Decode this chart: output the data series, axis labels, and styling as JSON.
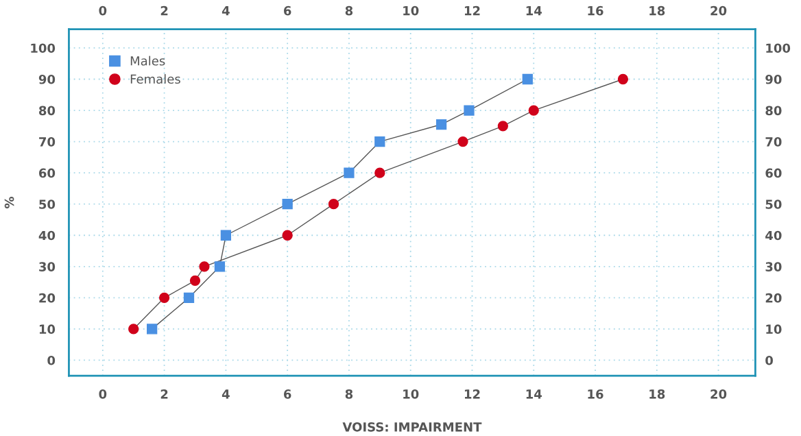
{
  "chart_data": {
    "type": "line",
    "xlabel": "VOISS: IMPAIRMENT",
    "ylabel": "%",
    "xlim": [
      -1.1,
      21.2
    ],
    "xticks": [
      0,
      2,
      4,
      6,
      8,
      10,
      12,
      14,
      16,
      18,
      20
    ],
    "x2lim": [
      -1.1,
      21.2
    ],
    "x2ticks": [
      0,
      2,
      4,
      6,
      8,
      10,
      12,
      14,
      16,
      18,
      20
    ],
    "ylim": [
      -5,
      106
    ],
    "yticks": [
      0,
      10,
      20,
      30,
      40,
      50,
      60,
      70,
      80,
      90,
      100
    ],
    "y2lim": [
      -5,
      106
    ],
    "y2ticks": [
      0,
      10,
      20,
      30,
      40,
      50,
      60,
      70,
      80,
      90,
      100
    ],
    "grid": true,
    "legend": "top left",
    "series": [
      {
        "name": "Males",
        "color": "#4a90e2",
        "marker": "square",
        "x": [
          1.6,
          2.8,
          3.8,
          4.0,
          6.0,
          8.0,
          9.0,
          11.0,
          11.9,
          13.8
        ],
        "values": [
          10,
          20,
          30,
          40,
          50,
          60,
          70,
          75.5,
          80,
          90
        ]
      },
      {
        "name": "Females",
        "color": "#d0021b",
        "marker": "circle",
        "x": [
          1.0,
          2.0,
          3.0,
          3.3,
          6.0,
          7.5,
          9.0,
          11.7,
          13.0,
          14.0,
          16.9
        ],
        "values": [
          10,
          20,
          25.5,
          30,
          40,
          50,
          60,
          70,
          75,
          80,
          90
        ]
      }
    ]
  }
}
